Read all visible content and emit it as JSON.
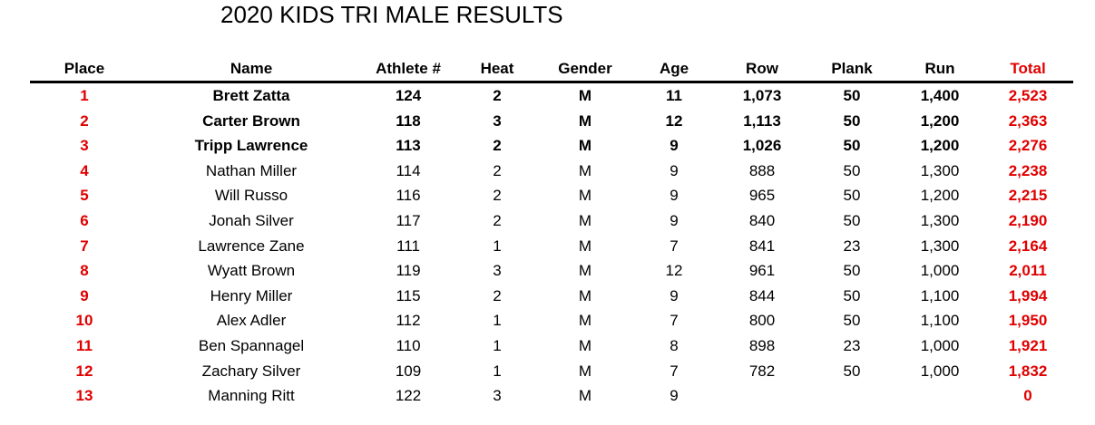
{
  "title": "2020 KIDS TRI MALE RESULTS",
  "table": {
    "columns": [
      "Place",
      "Name",
      "Athlete #",
      "Heat",
      "Gender",
      "Age",
      "Row",
      "Plank",
      "Run",
      "Total"
    ],
    "rows": [
      [
        "1",
        "Brett Zatta",
        "124",
        "2",
        "M",
        "11",
        "1,073",
        "50",
        "1,400",
        "2,523"
      ],
      [
        "2",
        "Carter Brown",
        "118",
        "3",
        "M",
        "12",
        "1,113",
        "50",
        "1,200",
        "2,363"
      ],
      [
        "3",
        "Tripp Lawrence",
        "113",
        "2",
        "M",
        "9",
        "1,026",
        "50",
        "1,200",
        "2,276"
      ],
      [
        "4",
        "Nathan Miller",
        "114",
        "2",
        "M",
        "9",
        "888",
        "50",
        "1,300",
        "2,238"
      ],
      [
        "5",
        "Will Russo",
        "116",
        "2",
        "M",
        "9",
        "965",
        "50",
        "1,200",
        "2,215"
      ],
      [
        "6",
        "Jonah Silver",
        "117",
        "2",
        "M",
        "9",
        "840",
        "50",
        "1,300",
        "2,190"
      ],
      [
        "7",
        "Lawrence Zane",
        "111",
        "1",
        "M",
        "7",
        "841",
        "23",
        "1,300",
        "2,164"
      ],
      [
        "8",
        "Wyatt Brown",
        "119",
        "3",
        "M",
        "12",
        "961",
        "50",
        "1,000",
        "2,011"
      ],
      [
        "9",
        "Henry Miller",
        "115",
        "2",
        "M",
        "9",
        "844",
        "50",
        "1,100",
        "1,994"
      ],
      [
        "10",
        "Alex Adler",
        "112",
        "1",
        "M",
        "7",
        "800",
        "50",
        "1,100",
        "1,950"
      ],
      [
        "11",
        "Ben Spannagel",
        "110",
        "1",
        "M",
        "8",
        "898",
        "23",
        "1,000",
        "1,921"
      ],
      [
        "12",
        "Zachary Silver",
        "109",
        "1",
        "M",
        "7",
        "782",
        "50",
        "1,000",
        "1,832"
      ],
      [
        "13",
        "Manning Ritt",
        "122",
        "3",
        "M",
        "9",
        null,
        null,
        null,
        "0"
      ]
    ]
  }
}
